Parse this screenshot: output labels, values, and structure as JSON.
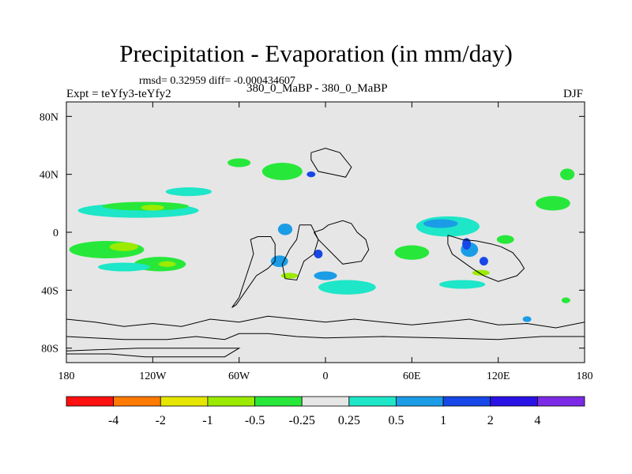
{
  "chart_data": {
    "type": "heatmap",
    "title": "Precipitation - Evaporation (in mm/day)",
    "stats": "rmsd= 0.32959 diff= -0.000434607",
    "experiment": "Expt = teYfy3-teYfy2",
    "experiment_names": "380_0_MaBP - 380_0_MaBP",
    "season": "DJF",
    "xlim": [
      -180,
      180
    ],
    "ylim": [
      -90,
      90
    ],
    "x_ticks": [
      {
        "value": -180,
        "label": "180"
      },
      {
        "value": -120,
        "label": "120W"
      },
      {
        "value": -60,
        "label": "60W"
      },
      {
        "value": 0,
        "label": "0"
      },
      {
        "value": 60,
        "label": "60E"
      },
      {
        "value": 120,
        "label": "120E"
      },
      {
        "value": 180,
        "label": "180"
      }
    ],
    "y_ticks": [
      {
        "value": 80,
        "label": "80N"
      },
      {
        "value": 40,
        "label": "40N"
      },
      {
        "value": 0,
        "label": "0"
      },
      {
        "value": -40,
        "label": "40S"
      },
      {
        "value": -80,
        "label": "80S"
      }
    ],
    "colorbar": {
      "colors": [
        "#ff1010",
        "#ff7a00",
        "#e6e600",
        "#9bea00",
        "#27e83a",
        "#e6e6e6",
        "#1ee6c8",
        "#1b9ce6",
        "#1747e6",
        "#2a12e6",
        "#7d2ae6"
      ],
      "levels": [
        "-4",
        "-2",
        "-1",
        "-0.5",
        "-0.25",
        "0.25",
        "0.5",
        "1",
        "2",
        "4"
      ]
    },
    "background_color": "#e6e6e6",
    "coastlines": [
      {
        "name": "south-america",
        "points": [
          [
            -47,
            -3
          ],
          [
            -38,
            -3
          ],
          [
            -35,
            -8
          ],
          [
            -35,
            -20
          ],
          [
            -40,
            -25
          ],
          [
            -48,
            -30
          ],
          [
            -55,
            -40
          ],
          [
            -62,
            -50
          ],
          [
            -65,
            -52
          ],
          [
            -60,
            -45
          ],
          [
            -55,
            -30
          ],
          [
            -50,
            -15
          ],
          [
            -52,
            -5
          ],
          [
            -47,
            -3
          ]
        ]
      },
      {
        "name": "southern-africa",
        "points": [
          [
            -18,
            5
          ],
          [
            -10,
            5
          ],
          [
            -5,
            -5
          ],
          [
            -8,
            -15
          ],
          [
            -15,
            -20
          ],
          [
            -20,
            -33
          ],
          [
            -28,
            -32
          ],
          [
            -30,
            -22
          ],
          [
            -25,
            -12
          ],
          [
            -20,
            -5
          ],
          [
            -18,
            5
          ]
        ]
      },
      {
        "name": "africa-north",
        "points": [
          [
            -8,
            0
          ],
          [
            -2,
            2
          ],
          [
            2,
            5
          ],
          [
            12,
            8
          ],
          [
            18,
            6
          ],
          [
            22,
            0
          ],
          [
            28,
            -5
          ],
          [
            30,
            -12
          ],
          [
            25,
            -20
          ],
          [
            12,
            -22
          ],
          [
            5,
            -15
          ],
          [
            0,
            -10
          ],
          [
            -5,
            -5
          ],
          [
            -8,
            0
          ]
        ]
      },
      {
        "name": "australia-region",
        "points": [
          [
            85,
            -2
          ],
          [
            95,
            -5
          ],
          [
            105,
            -6
          ],
          [
            115,
            -8
          ],
          [
            122,
            -10
          ],
          [
            130,
            -14
          ],
          [
            135,
            -20
          ],
          [
            138,
            -25
          ],
          [
            133,
            -30
          ],
          [
            120,
            -34
          ],
          [
            110,
            -30
          ],
          [
            102,
            -25
          ],
          [
            95,
            -20
          ],
          [
            88,
            -15
          ],
          [
            85,
            -8
          ],
          [
            85,
            -2
          ]
        ]
      },
      {
        "name": "north-continent",
        "points": [
          [
            -10,
            55
          ],
          [
            0,
            58
          ],
          [
            10,
            55
          ],
          [
            18,
            45
          ],
          [
            14,
            38
          ],
          [
            5,
            40
          ],
          [
            -5,
            42
          ],
          [
            -10,
            50
          ],
          [
            -10,
            55
          ]
        ]
      },
      {
        "name": "antarctic-belt",
        "points": [
          [
            -180,
            -60
          ],
          [
            -160,
            -62
          ],
          [
            -140,
            -65
          ],
          [
            -120,
            -63
          ],
          [
            -100,
            -65
          ],
          [
            -80,
            -60
          ],
          [
            -60,
            -62
          ],
          [
            -40,
            -58
          ],
          [
            -20,
            -60
          ],
          [
            0,
            -62
          ],
          [
            20,
            -60
          ],
          [
            40,
            -62
          ],
          [
            60,
            -64
          ],
          [
            80,
            -62
          ],
          [
            100,
            -60
          ],
          [
            120,
            -64
          ],
          [
            140,
            -63
          ],
          [
            160,
            -66
          ],
          [
            180,
            -62
          ]
        ]
      },
      {
        "name": "south-strip",
        "points": [
          [
            -180,
            -72
          ],
          [
            -140,
            -74
          ],
          [
            -110,
            -74
          ],
          [
            -90,
            -72
          ],
          [
            -70,
            -74
          ],
          [
            -60,
            -70
          ],
          [
            -40,
            -70
          ],
          [
            -20,
            -72
          ],
          [
            0,
            -73
          ],
          [
            40,
            -72
          ],
          [
            80,
            -73
          ],
          [
            120,
            -74
          ],
          [
            150,
            -72
          ],
          [
            180,
            -72
          ]
        ]
      },
      {
        "name": "polar-bar",
        "points": [
          [
            -180,
            -84
          ],
          [
            -150,
            -84
          ],
          [
            -125,
            -86
          ],
          [
            -70,
            -86
          ],
          [
            -60,
            -80
          ],
          [
            -130,
            -80
          ],
          [
            -180,
            -82
          ]
        ]
      }
    ],
    "anomaly_patches": [
      {
        "level": "0.25",
        "lon": -130,
        "lat": 15,
        "rx": 42,
        "ry": 5
      },
      {
        "level": "-0.25",
        "lon": -125,
        "lat": 18,
        "rx": 30,
        "ry": 3
      },
      {
        "level": "-0.5",
        "lon": -120,
        "lat": 17,
        "rx": 8,
        "ry": 2
      },
      {
        "level": "0.25",
        "lon": -95,
        "lat": 28,
        "rx": 16,
        "ry": 3
      },
      {
        "level": "-0.25",
        "lon": -30,
        "lat": 42,
        "rx": 14,
        "ry": 6
      },
      {
        "level": "-0.25",
        "lon": -60,
        "lat": 48,
        "rx": 8,
        "ry": 3
      },
      {
        "level": "-0.25",
        "lon": -152,
        "lat": -12,
        "rx": 26,
        "ry": 6
      },
      {
        "level": "-0.25",
        "lon": -115,
        "lat": -22,
        "rx": 18,
        "ry": 5
      },
      {
        "level": "0.25",
        "lon": -140,
        "lat": -24,
        "rx": 18,
        "ry": 3
      },
      {
        "level": "-0.5",
        "lon": -140,
        "lat": -10,
        "rx": 10,
        "ry": 3
      },
      {
        "level": "-0.5",
        "lon": -110,
        "lat": -22,
        "rx": 6,
        "ry": 2
      },
      {
        "level": "0.25",
        "lon": 85,
        "lat": 4,
        "rx": 22,
        "ry": 7
      },
      {
        "level": "0.5",
        "lon": 80,
        "lat": 6,
        "rx": 12,
        "ry": 3
      },
      {
        "level": "-0.25",
        "lon": 60,
        "lat": -14,
        "rx": 12,
        "ry": 5
      },
      {
        "level": "0.25",
        "lon": 15,
        "lat": -38,
        "rx": 20,
        "ry": 5
      },
      {
        "level": "0.25",
        "lon": 95,
        "lat": -36,
        "rx": 16,
        "ry": 3
      },
      {
        "level": "-0.25",
        "lon": 158,
        "lat": 20,
        "rx": 12,
        "ry": 5
      },
      {
        "level": "-0.25",
        "lon": 168,
        "lat": 40,
        "rx": 5,
        "ry": 4
      },
      {
        "level": "0.5",
        "lon": -28,
        "lat": 2,
        "rx": 5,
        "ry": 4
      },
      {
        "level": "0.5",
        "lon": -32,
        "lat": -20,
        "rx": 6,
        "ry": 4
      },
      {
        "level": "1",
        "lon": -5,
        "lat": -15,
        "rx": 3,
        "ry": 3
      },
      {
        "level": "0.5",
        "lon": 0,
        "lat": -30,
        "rx": 8,
        "ry": 3
      },
      {
        "level": "1",
        "lon": -10,
        "lat": 40,
        "rx": 3,
        "ry": 2
      },
      {
        "level": "-0.5",
        "lon": -25,
        "lat": -30,
        "rx": 6,
        "ry": 2
      },
      {
        "level": "0.5",
        "lon": 100,
        "lat": -12,
        "rx": 6,
        "ry": 5
      },
      {
        "level": "1",
        "lon": 98,
        "lat": -8,
        "rx": 3,
        "ry": 4
      },
      {
        "level": "1",
        "lon": 110,
        "lat": -20,
        "rx": 3,
        "ry": 3
      },
      {
        "level": "-0.5",
        "lon": 108,
        "lat": -28,
        "rx": 6,
        "ry": 2
      },
      {
        "level": "-0.25",
        "lon": 125,
        "lat": -5,
        "rx": 6,
        "ry": 3
      },
      {
        "level": "0.5",
        "lon": 140,
        "lat": -60,
        "rx": 3,
        "ry": 2
      },
      {
        "level": "-0.25",
        "lon": 167,
        "lat": -47,
        "rx": 3,
        "ry": 2
      }
    ]
  }
}
